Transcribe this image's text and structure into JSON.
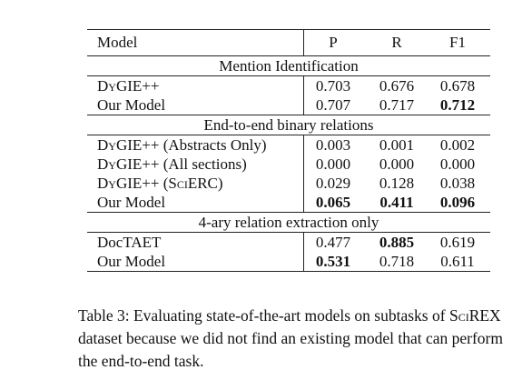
{
  "table": {
    "headers": {
      "model": "Model",
      "p": "P",
      "r": "R",
      "f1": "F1"
    },
    "sections": [
      {
        "title": "Mention Identification",
        "rows": [
          {
            "model": "DyGIE++",
            "p": "0.703",
            "r": "0.676",
            "f1": "0.678",
            "bold": []
          },
          {
            "model": "Our Model",
            "p": "0.707",
            "r": "0.717",
            "f1": "0.712",
            "bold": [
              "f1"
            ]
          }
        ]
      },
      {
        "title": "End-to-end binary relations",
        "rows": [
          {
            "model": "DyGIE++ (Abstracts Only)",
            "p": "0.003",
            "r": "0.001",
            "f1": "0.002",
            "bold": []
          },
          {
            "model": "DyGIE++ (All sections)",
            "p": "0.000",
            "r": "0.000",
            "f1": "0.000",
            "bold": []
          },
          {
            "model": "DyGIE++ (SciERC)",
            "p": "0.029",
            "r": "0.128",
            "f1": "0.038",
            "bold": []
          },
          {
            "model": "Our Model",
            "p": "0.065",
            "r": "0.411",
            "f1": "0.096",
            "bold": [
              "p",
              "r",
              "f1"
            ]
          }
        ]
      },
      {
        "title": "4-ary relation extraction only",
        "rows": [
          {
            "model": "DocTAET",
            "p": "0.477",
            "r": "0.885",
            "f1": "0.619",
            "bold": [
              "r"
            ]
          },
          {
            "model": "Our Model",
            "p": "0.531",
            "r": "0.718",
            "f1": "0.611",
            "bold": [
              "p"
            ]
          }
        ]
      }
    ]
  },
  "caption": "Table 3: Evaluating state-of-the-art models on subtasks of SciREX dataset because we did not find an existing model that can perform the end-to-end task."
}
